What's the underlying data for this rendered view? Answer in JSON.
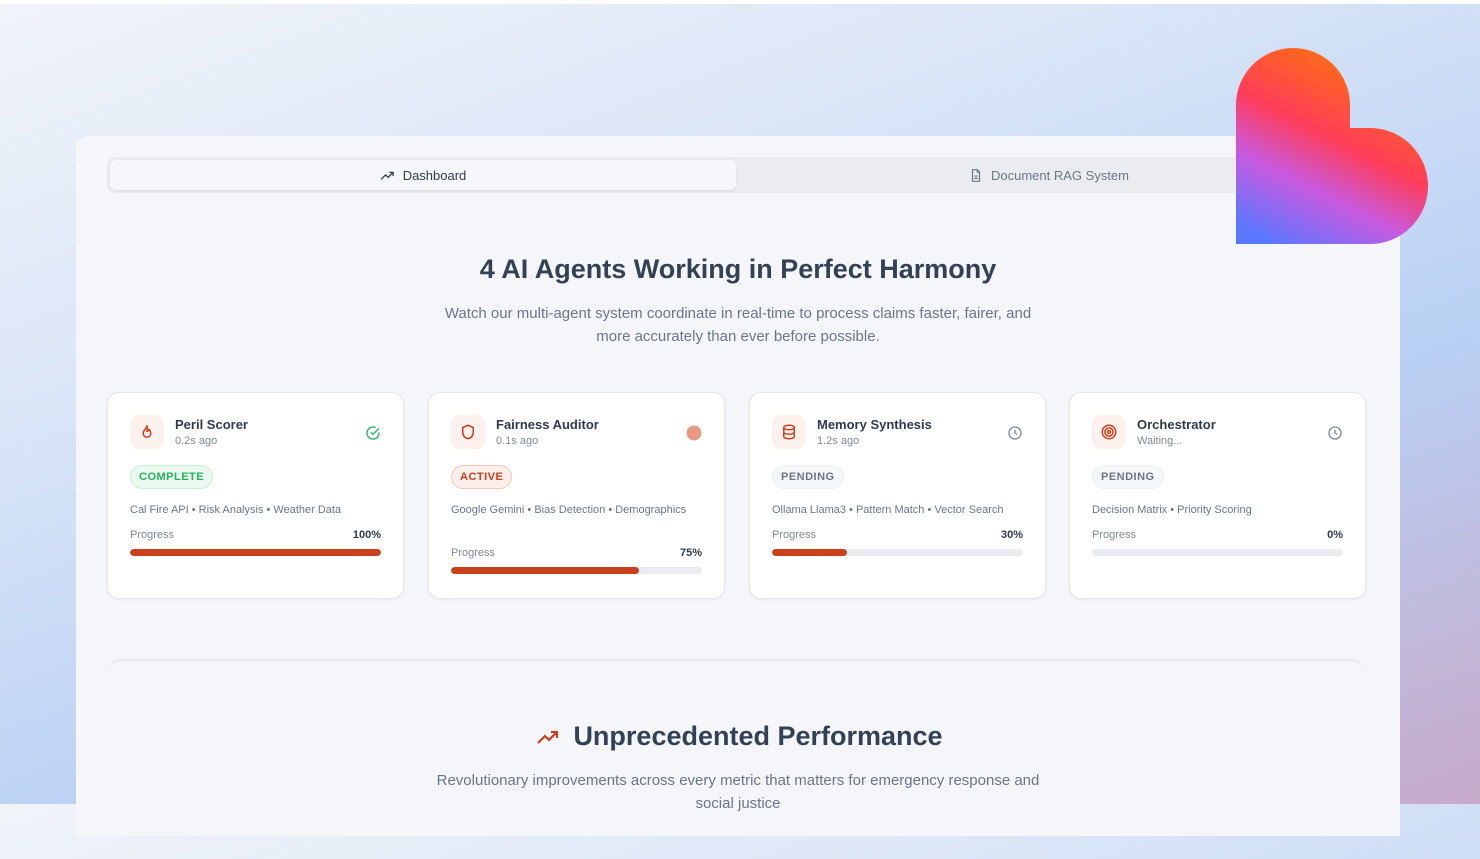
{
  "tabs": [
    {
      "label": "Dashboard",
      "icon": "trending-up-icon",
      "active": true
    },
    {
      "label": "Document RAG System",
      "icon": "document-icon",
      "active": false
    }
  ],
  "hero": {
    "title": "4 AI Agents Working in Perfect Harmony",
    "subtitle": "Watch our multi-agent system coordinate in real-time to process claims faster, fairer, and more accurately than ever before possible."
  },
  "agents": [
    {
      "name": "Peril Scorer",
      "time": "0.2s ago",
      "status": "COMPLETE",
      "tags": "Cal Fire API • Risk Analysis • Weather Data",
      "progress_label": "Progress",
      "progress_text": "100%",
      "progress": 100,
      "icon": "flame-icon",
      "status_icon": "check-circle-icon"
    },
    {
      "name": "Fairness Auditor",
      "time": "0.1s ago",
      "status": "ACTIVE",
      "tags": "Google Gemini • Bias Detection • Demographics",
      "progress_label": "Progress",
      "progress_text": "75%",
      "progress": 75,
      "icon": "shield-icon",
      "status_icon": "active-dot-icon"
    },
    {
      "name": "Memory Synthesis",
      "time": "1.2s ago",
      "status": "PENDING",
      "tags": "Ollama Llama3 • Pattern Match • Vector Search",
      "progress_label": "Progress",
      "progress_text": "30%",
      "progress": 30,
      "icon": "database-icon",
      "status_icon": "clock-icon"
    },
    {
      "name": "Orchestrator",
      "time": "Waiting...",
      "status": "PENDING",
      "tags": "Decision Matrix • Priority Scoring",
      "progress_label": "Progress",
      "progress_text": "0%",
      "progress": 0,
      "icon": "target-icon",
      "status_icon": "clock-icon"
    }
  ],
  "performance": {
    "title": "Unprecedented Performance",
    "subtitle": "Revolutionary improvements across every metric that matters for emergency response and social justice"
  },
  "colors": {
    "accent": "#c9401c",
    "complete": "#22b35a",
    "text": "#334155"
  }
}
